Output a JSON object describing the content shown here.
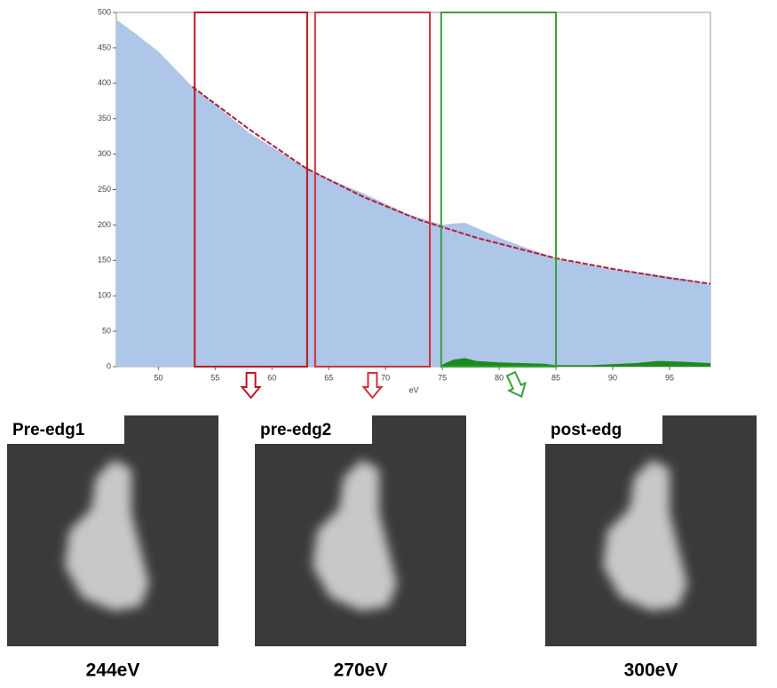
{
  "chart_data": {
    "type": "area",
    "x_label": "eV",
    "xlim": [
      46.3,
      98.6
    ],
    "ylim": [
      0,
      500
    ],
    "xticks": [
      50,
      55,
      60,
      65,
      70,
      75,
      80,
      85,
      90,
      95
    ],
    "yticks": [
      0,
      50,
      100,
      150,
      200,
      250,
      300,
      350,
      400,
      450,
      500
    ],
    "series": [
      {
        "style": "area",
        "color": "#aec6e8",
        "x": [
          46.3,
          48,
          50,
          53,
          55,
          58,
          60,
          63,
          65,
          68,
          70,
          72,
          75,
          76,
          77,
          78,
          80,
          82,
          85,
          88,
          90,
          92,
          95,
          97,
          98.6
        ],
        "values": [
          490,
          470,
          445,
          395,
          370,
          330,
          310,
          280,
          265,
          245,
          230,
          215,
          200,
          202,
          203,
          196,
          182,
          170,
          153,
          143,
          137,
          134,
          127,
          122,
          115
        ]
      },
      {
        "style": "line",
        "color": "#b0203a",
        "x": [
          53,
          58,
          63,
          68,
          73,
          78,
          85,
          90,
          95,
          98.6
        ],
        "values": [
          395,
          335,
          280,
          240,
          207,
          182,
          153,
          138,
          125,
          117
        ]
      },
      {
        "style": "area",
        "color": "#1e8a1e",
        "x": [
          75,
          76,
          77,
          78,
          80,
          82,
          84,
          85,
          88,
          92,
          94,
          96,
          98.6
        ],
        "values": [
          3,
          10,
          12,
          8,
          6,
          5,
          4,
          2,
          2,
          5,
          8,
          7,
          5
        ]
      }
    ],
    "windows": [
      {
        "start": 53.2,
        "end": 63.1,
        "color": "#c0141e"
      },
      {
        "start": 63.8,
        "end": 73.9,
        "color": "#d0303a"
      },
      {
        "start": 74.9,
        "end": 85.0,
        "color": "#3aa03a"
      }
    ]
  },
  "panels": [
    {
      "label": "Pre-edg1",
      "energy": "244eV"
    },
    {
      "label": "pre-edg2",
      "energy": "270eV"
    },
    {
      "label": "post-edg",
      "energy": "300eV"
    }
  ]
}
